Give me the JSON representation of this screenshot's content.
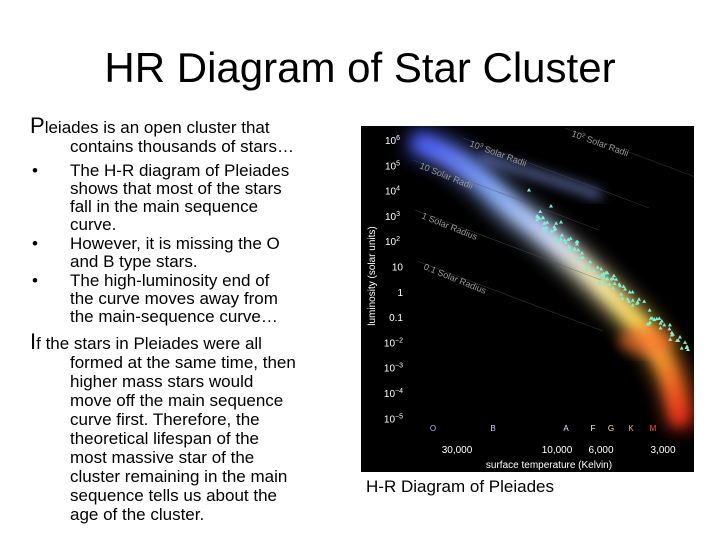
{
  "slide": {
    "title": "HR Diagram of Star Cluster",
    "para1": {
      "initial": "P",
      "first_line": "leiades is an open cluster that",
      "second_line": "contains thousands of stars…"
    },
    "bullet_symbol": "•",
    "bullets": [
      [
        "The H-R diagram of Pleiades",
        "shows that most of the stars",
        "fall in the main sequence",
        "curve."
      ],
      [
        "However, it is missing the O",
        "and B type stars."
      ],
      [
        "The high-luminosity end of",
        "the curve moves away from",
        "the main-sequence curve…"
      ]
    ],
    "para2": {
      "initial": "I",
      "first_line": "f the stars in Pleiades were all",
      "lines": [
        "formed at the same time, then",
        "higher mass stars would",
        "move off the main sequence",
        "curve first. Therefore, the",
        "theoretical lifespan of the",
        "most massive star of the",
        "cluster remaining in the main",
        "sequence tells us about the",
        "age of the cluster."
      ]
    },
    "caption": "H-R Diagram of Pleiades"
  },
  "diagram": {
    "y_axis_label": "luminosity (solar units)",
    "x_axis_label": "surface temperature (Kelvin)",
    "y_ticks": [
      {
        "base": "10",
        "exp": "6"
      },
      {
        "base": "10",
        "exp": "5"
      },
      {
        "base": "10",
        "exp": "4"
      },
      {
        "base": "10",
        "exp": "3"
      },
      {
        "base": "10",
        "exp": "2"
      },
      {
        "base": "10",
        "exp": ""
      },
      {
        "base": "1",
        "exp": ""
      },
      {
        "base": "0.1",
        "exp": ""
      },
      {
        "base": "10",
        "exp": "−2"
      },
      {
        "base": "10",
        "exp": "−3"
      },
      {
        "base": "10",
        "exp": "−4"
      },
      {
        "base": "10",
        "exp": "−5"
      }
    ],
    "x_ticks": [
      "30,000",
      "10,000",
      "6,000",
      "3,000"
    ],
    "spectral_classes": [
      "O",
      "B",
      "A",
      "F",
      "G",
      "K",
      "M"
    ],
    "radius_lines": [
      {
        "label_main": "10",
        "label_sup": "3",
        "label_rest": " Solar Radii"
      },
      {
        "label_main": "10",
        "label_sup": "2",
        "label_rest": " Solar Radii"
      },
      {
        "label_main": "10",
        "label_sup": "",
        "label_rest": " Solar Radii"
      },
      {
        "label_main": "1",
        "label_sup": "",
        "label_rest": " Solar Radius"
      },
      {
        "label_main": "0.1",
        "label_sup": "",
        "label_rest": " Solar Radius"
      }
    ],
    "colors": {
      "background": "#000000",
      "star_points": "#7ff0d0",
      "axis_text": "#ffffff",
      "radius_label": "#9a9a9a",
      "class_O": "#9ab8ff",
      "class_B": "#b8ccff",
      "class_A": "#e6e6ff",
      "class_F": "#fff4c8",
      "class_G": "#ffe866",
      "class_K": "#ffb040",
      "class_M": "#ff5a3a"
    }
  }
}
